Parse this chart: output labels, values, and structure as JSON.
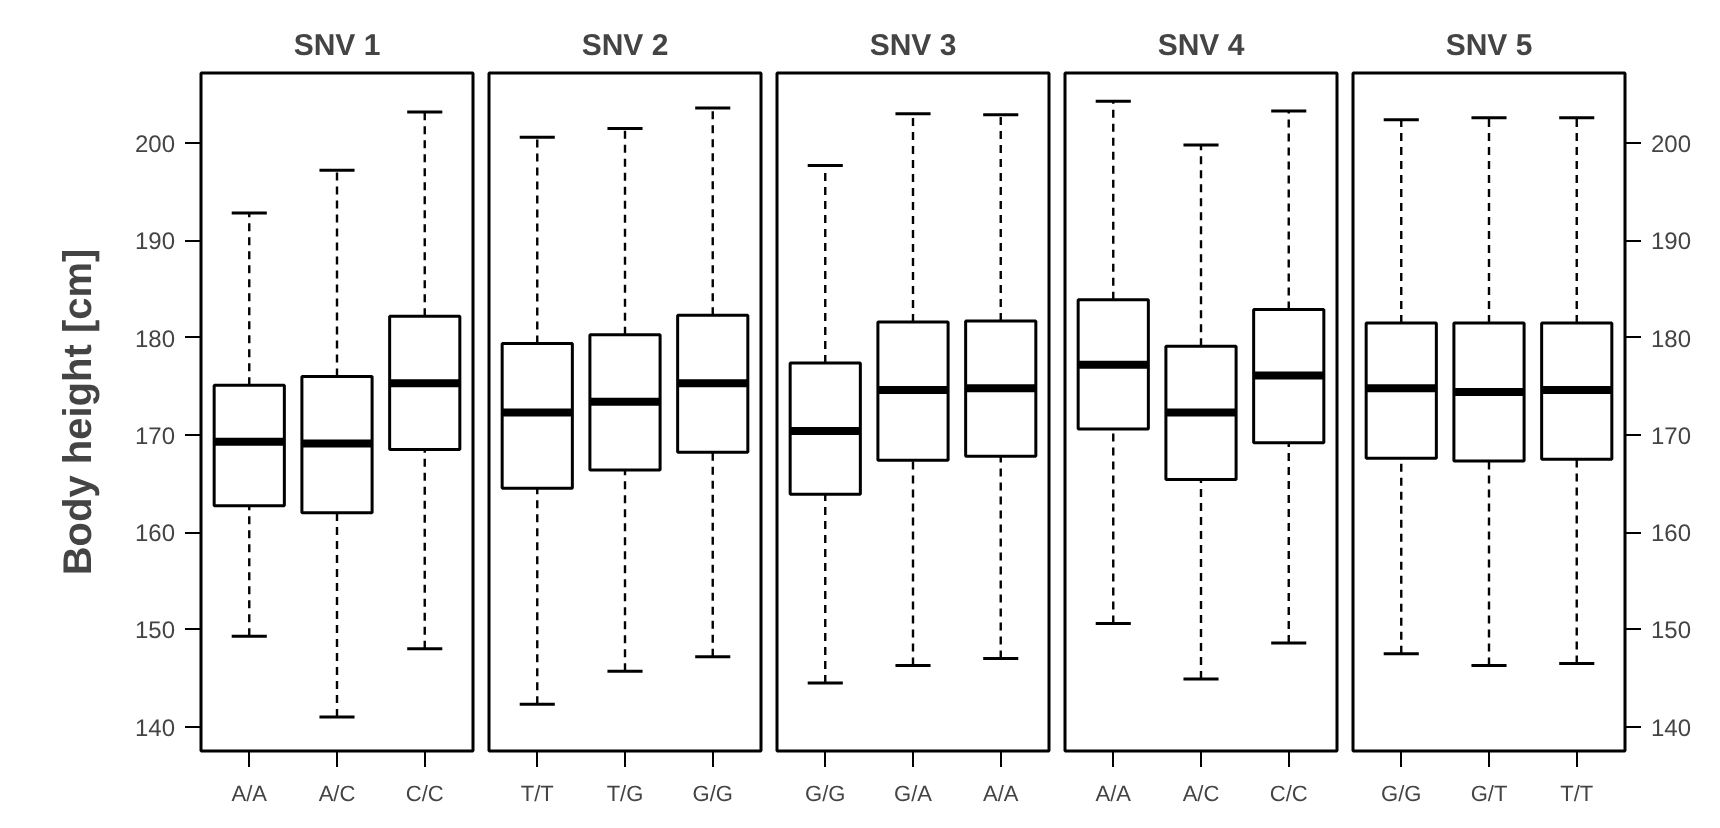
{
  "chart_data": [
    {
      "type": "box",
      "title": "SNV 1",
      "ylabel": "Body height [cm]",
      "categories": [
        "A/A",
        "A/C",
        "C/C"
      ],
      "ylim": [
        137.5,
        207.2
      ],
      "yticks": [
        140,
        150,
        160,
        170,
        180,
        190,
        200
      ],
      "boxes": [
        {
          "low": 149.3,
          "q1": 162.7,
          "median": 169.3,
          "q3": 175.1,
          "high": 192.8
        },
        {
          "low": 141,
          "q1": 162,
          "median": 169.1,
          "q3": 176,
          "high": 197.2
        },
        {
          "low": 148,
          "q1": 168.5,
          "median": 175.3,
          "q3": 182.2,
          "high": 203.2
        }
      ]
    },
    {
      "type": "box",
      "title": "SNV 2",
      "categories": [
        "T/T",
        "T/G",
        "G/G"
      ],
      "ylim": [
        137.5,
        207.2
      ],
      "yticks": [
        140,
        150,
        160,
        170,
        180,
        190,
        200
      ],
      "tick_labels": "x",
      "boxes": [
        {
          "low": 142.3,
          "q1": 164.5,
          "median": 172.3,
          "q3": 179.4,
          "high": 200.6
        },
        {
          "low": 145.7,
          "q1": 166.4,
          "median": 173.4,
          "q3": 180.3,
          "high": 201.5
        },
        {
          "low": 147.2,
          "q1": 168.2,
          "median": 175.3,
          "q3": 182.3,
          "high": 203.6
        }
      ]
    },
    {
      "type": "box",
      "title": "SNV 3",
      "categories": [
        "G/G",
        "G/A",
        "A/A"
      ],
      "ylim": [
        137.5,
        207.2
      ],
      "yticks": [
        140,
        150,
        160,
        170,
        180,
        190,
        200
      ],
      "tick_labels": "x",
      "boxes": [
        {
          "low": 144.5,
          "q1": 163.9,
          "median": 170.4,
          "q3": 177.4,
          "high": 197.7
        },
        {
          "low": 146.3,
          "q1": 167.4,
          "median": 174.6,
          "q3": 181.6,
          "high": 203
        },
        {
          "low": 147,
          "q1": 167.8,
          "median": 174.8,
          "q3": 181.7,
          "high": 202.9
        }
      ]
    },
    {
      "type": "box",
      "title": "SNV 4",
      "categories": [
        "A/A",
        "A/C",
        "C/C"
      ],
      "ylim": [
        137.5,
        207.2
      ],
      "yticks": [
        140,
        150,
        160,
        170,
        180,
        190,
        200
      ],
      "tick_labels": "x",
      "boxes": [
        {
          "low": 150.6,
          "q1": 170.6,
          "median": 177.2,
          "q3": 183.9,
          "high": 204.3
        },
        {
          "low": 144.9,
          "q1": 165.4,
          "median": 172.3,
          "q3": 179.1,
          "high": 199.8
        },
        {
          "low": 148.6,
          "q1": 169.2,
          "median": 176.1,
          "q3": 182.9,
          "high": 203.3
        }
      ]
    },
    {
      "type": "box",
      "title": "SNV 5",
      "categories": [
        "G/G",
        "G/T",
        "T/T"
      ],
      "ylim": [
        137.5,
        207.2
      ],
      "yticks": [
        140,
        150,
        160,
        170,
        180,
        190,
        200
      ],
      "boxes": [
        {
          "low": 147.5,
          "q1": 167.6,
          "median": 174.8,
          "q3": 181.5,
          "high": 202.4
        },
        {
          "low": 146.3,
          "q1": 167.3,
          "median": 174.4,
          "q3": 181.5,
          "high": 202.6
        },
        {
          "low": 146.5,
          "q1": 167.5,
          "median": 174.6,
          "q3": 181.5,
          "high": 202.6
        }
      ]
    }
  ]
}
